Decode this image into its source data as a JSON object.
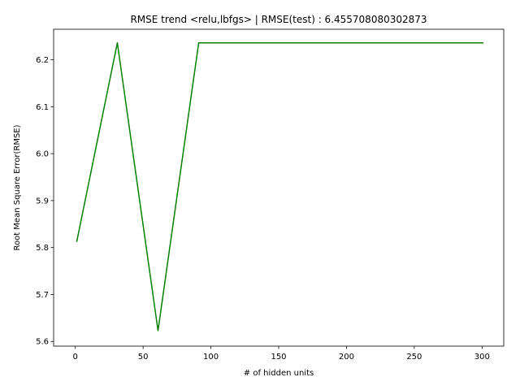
{
  "chart_data": {
    "type": "line",
    "title": "RMSE trend <relu,lbfgs> | RMSE(test) : 6.455708080302873",
    "xlabel": "# of hidden units",
    "ylabel": "Root Mean Square Error(RMSE)",
    "xlim": [
      -16,
      316
    ],
    "ylim": [
      5.59,
      6.265
    ],
    "xticks": [
      0,
      50,
      100,
      150,
      200,
      250,
      300
    ],
    "yticks": [
      5.6,
      5.7,
      5.8,
      5.9,
      6.0,
      6.1,
      6.2
    ],
    "xtick_labels": [
      "0",
      "50",
      "100",
      "150",
      "200",
      "250",
      "300"
    ],
    "ytick_labels": [
      "5.6",
      "5.7",
      "5.8",
      "5.9",
      "6.0",
      "6.1",
      "6.2"
    ],
    "grid": false,
    "series": [
      {
        "color": "#008000",
        "x": [
          1,
          31,
          61,
          91,
          121,
          151,
          181,
          211,
          241,
          271,
          301
        ],
        "y": [
          5.812,
          6.236,
          5.623,
          6.236,
          6.236,
          6.236,
          6.236,
          6.236,
          6.236,
          6.236,
          6.236
        ]
      }
    ]
  }
}
